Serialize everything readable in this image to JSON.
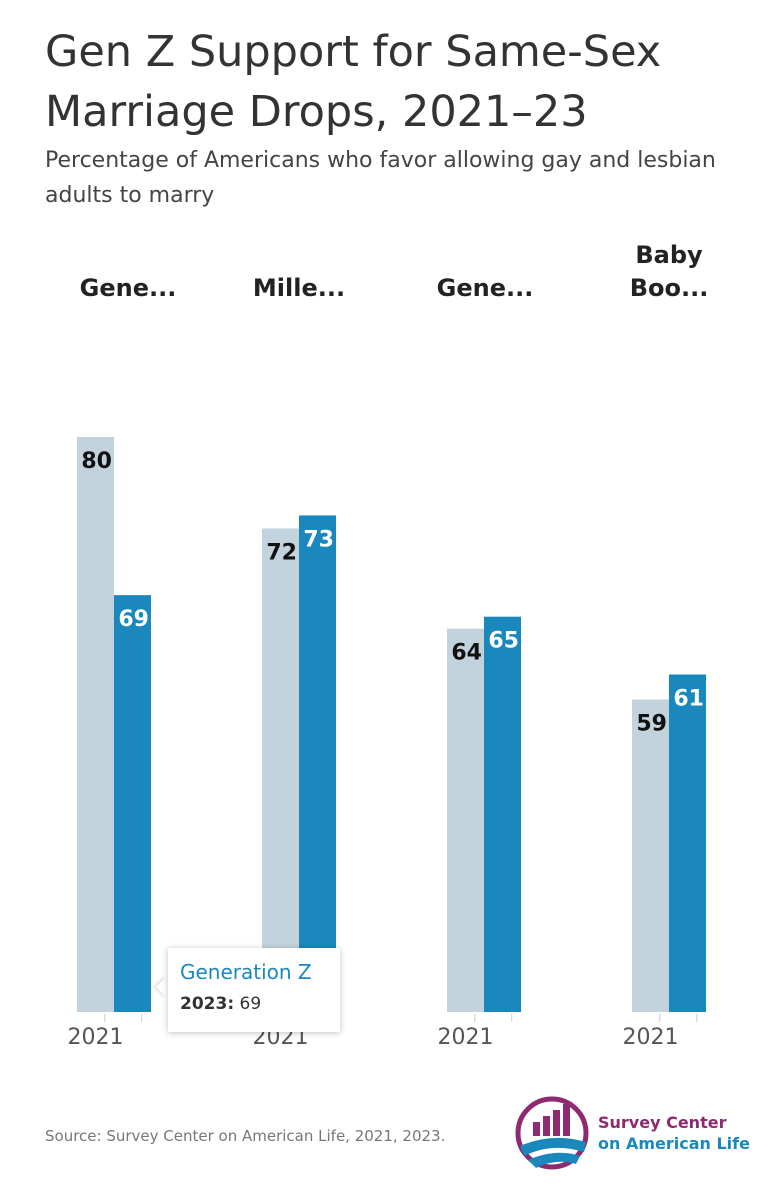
{
  "title": "Gen Z Support for Same-Sex Marriage Drops, 2021–23",
  "subtitle": "Percentage of Americans who favor allowing gay and lesbian adults to marry",
  "chart_data": [
    {
      "type": "bar",
      "title": "Gene...",
      "categories": [
        "2021",
        null
      ],
      "values": [
        80,
        69
      ],
      "colors": [
        "#c2d3dd",
        "#1b88bd"
      ],
      "ylim": [
        40,
        80
      ]
    },
    {
      "type": "bar",
      "title": "Mille...",
      "categories": [
        "2021",
        null
      ],
      "values": [
        72,
        73
      ],
      "colors": [
        "#c2d3dd",
        "#1b88bd"
      ],
      "ylim": [
        35,
        79
      ]
    },
    {
      "type": "bar",
      "title": "Gene...",
      "categories": [
        "2021",
        null
      ],
      "values": [
        64,
        65
      ],
      "colors": [
        "#c2d3dd",
        "#1b88bd"
      ],
      "ylim": [
        32,
        80
      ]
    },
    {
      "type": "bar",
      "title": "Baby Boo...",
      "categories": [
        "2021",
        null
      ],
      "values": [
        59,
        61
      ],
      "colors": [
        "#c2d3dd",
        "#1b88bd"
      ],
      "ylim": [
        34,
        80
      ]
    }
  ],
  "tooltip": {
    "title": "Generation Z",
    "label": "2023:",
    "value": 69
  },
  "source": "Source: Survey Center on American Life, 2021, 2023.",
  "logo": {
    "line1": "Survey Center",
    "line2": "on American Life"
  }
}
